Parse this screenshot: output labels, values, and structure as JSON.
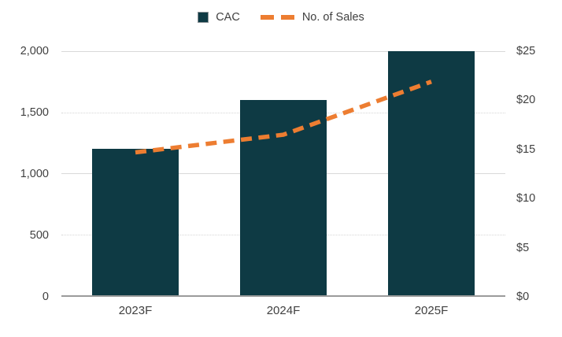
{
  "colors": {
    "bar_teal": "#0e3a44",
    "line_orange": "#ed7d31",
    "gridline_gray": "#d9d9d9",
    "axis_gray": "#9b9b9b",
    "text_gray": "#404040"
  },
  "legend": {
    "cac_label": "CAC",
    "sales_label": "No. of Sales"
  },
  "chart_data": {
    "type": "bar",
    "subtype": "bar-and-dashed-line-combo",
    "title": "",
    "categories": [
      "2023F",
      "2024F",
      "2025F"
    ],
    "series": [
      {
        "name": "CAC",
        "type": "bar",
        "axis": "left",
        "color": "#0e3a44",
        "values": [
          1200,
          1600,
          2000
        ]
      },
      {
        "name": "No. of Sales",
        "type": "line",
        "line_style": "dashed",
        "axis": "right",
        "color": "#ed7d31",
        "values": [
          14.7,
          16.5,
          21.9
        ]
      }
    ],
    "left_axis": {
      "min": 0,
      "max": 2000,
      "step": 500,
      "ticks": [
        "2,000",
        "1,500",
        "1,000",
        "500",
        "0"
      ]
    },
    "right_axis": {
      "min": 0,
      "max": 25,
      "step": 5,
      "ticks": [
        "$25",
        "$20",
        "$15",
        "$10",
        "$5",
        "$0"
      ]
    },
    "grid": "major solid gridlines at 0/1000/2000, minor dotted at 500/1500",
    "legend_position": "top-center"
  }
}
